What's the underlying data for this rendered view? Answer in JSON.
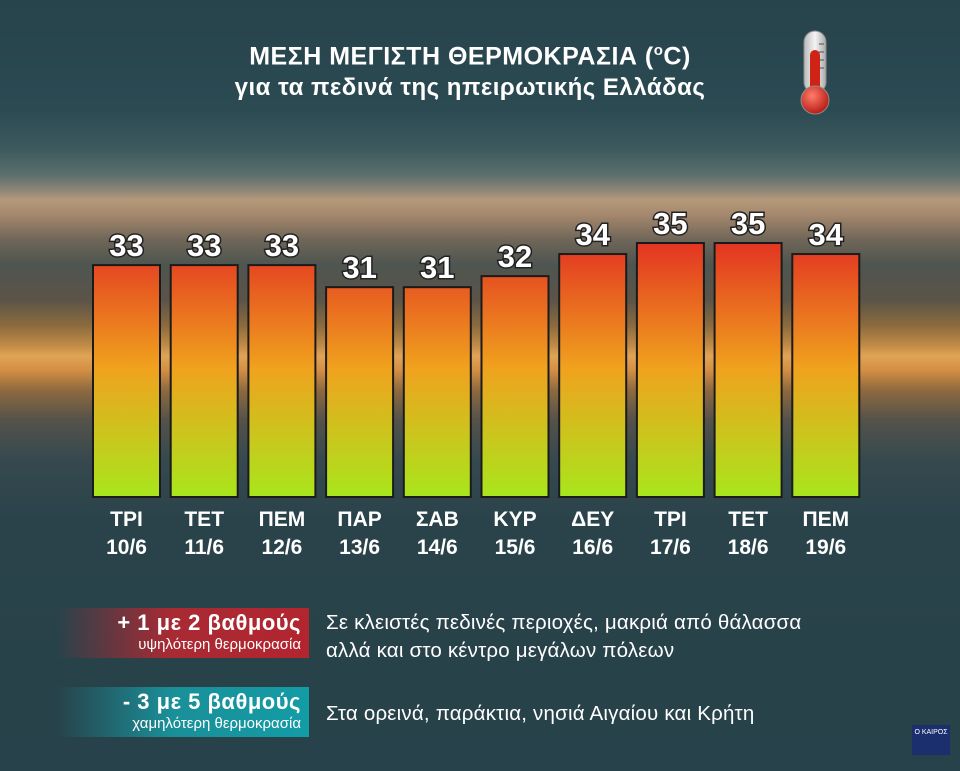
{
  "title": {
    "line1_a": "ΜΕΣΗ ΜΕΓΙΣΤΗ ΘΕΡΜΟΚΡΑΣΙΑ (",
    "line1_sup": "o",
    "line1_b": "C)",
    "line2": "για τα πεδινά της ηπειρωτικής Ελλάδας"
  },
  "chart_data": {
    "type": "bar",
    "categories": [
      "ΤΡΙ 10/6",
      "ΤΕΤ 11/6",
      "ΠΕΜ 12/6",
      "ΠΑΡ 13/6",
      "ΣΑΒ 14/6",
      "ΚΥΡ 15/6",
      "ΔΕΥ 16/6",
      "ΤΡΙ 17/6",
      "ΤΕΤ 18/6",
      "ΠΕΜ 19/6"
    ],
    "days": [
      "ΤΡΙ",
      "ΤΕΤ",
      "ΠΕΜ",
      "ΠΑΡ",
      "ΣΑΒ",
      "ΚΥΡ",
      "ΔΕΥ",
      "ΤΡΙ",
      "ΤΕΤ",
      "ΠΕΜ"
    ],
    "dates": [
      "10/6",
      "11/6",
      "12/6",
      "13/6",
      "14/6",
      "15/6",
      "16/6",
      "17/6",
      "18/6",
      "19/6"
    ],
    "values": [
      33,
      33,
      33,
      31,
      31,
      32,
      34,
      35,
      35,
      34
    ],
    "title": "ΜΕΣΗ ΜΕΓΙΣΤΗ ΘΕΡΜΟΚΡΑΣΙΑ (oC)",
    "xlabel": "",
    "ylabel": "",
    "ylim": [
      12,
      35
    ],
    "grid": false,
    "colors": {
      "bar_top": "#e23222",
      "bar_mid": "#f0a21e",
      "bar_bottom": "#a8e61c",
      "bar_border": "#1b1b1b"
    }
  },
  "legend": {
    "warmer": {
      "amount": "+  1 με 2 βαθμούς",
      "desc": "υψηλότερη θερμοκρασία",
      "text_line1": "Σε κλειστές πεδινές περιοχές, μακριά από θάλασσα",
      "text_line2": "αλλά και στο κέντρο μεγάλων πόλεων",
      "color": "#b3252f"
    },
    "cooler": {
      "amount": "-  3 με 5 βαθμούς",
      "desc": "χαμηλότερη θερμοκρασία",
      "text": "Στα ορεινά, παράκτια, νησιά Αιγαίου και Κρήτη",
      "color": "#139ca6"
    }
  },
  "logo": {
    "line1": "Ο ΚΑΙΡΟΣ"
  }
}
